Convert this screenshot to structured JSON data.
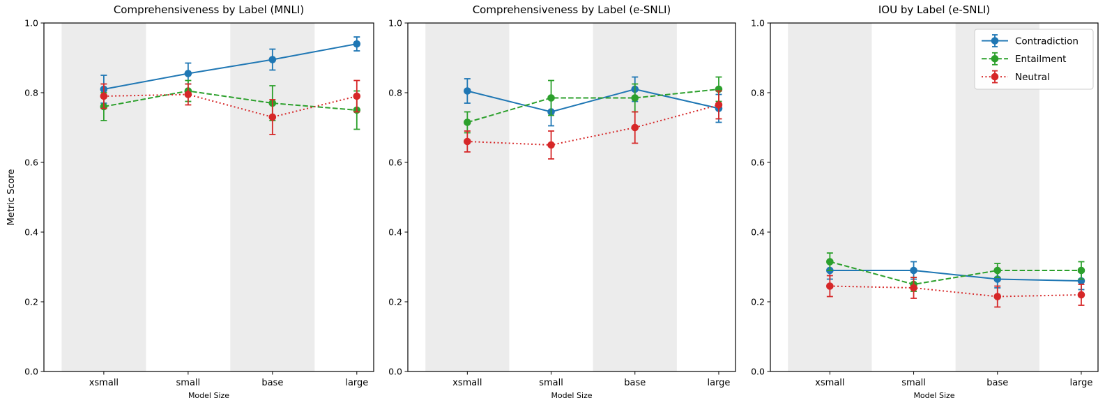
{
  "figure": {
    "background": "#ffffff",
    "axis_color": "#000000",
    "band_color": "#ececec",
    "legend_border_color": "#cccccc",
    "legend_background": "#ffffff"
  },
  "chart_data": [
    {
      "type": "line",
      "title": "Comprehensiveness by Label (MNLI)",
      "xlabel": "Model Size",
      "ylabel": "Metric Score",
      "categories": [
        "xsmall",
        "small",
        "base",
        "large"
      ],
      "ylim": [
        0.0,
        1.0
      ],
      "yticks": [
        "0.0",
        "0.2",
        "0.4",
        "0.6",
        "0.8",
        "1.0"
      ],
      "grid": false,
      "shaded_categories": [
        0,
        2
      ],
      "legend": {
        "visible": false,
        "position": ""
      },
      "series": [
        {
          "name": "Contradiction",
          "color": "#1f77b4",
          "linestyle": "solid",
          "values": [
            0.81,
            0.855,
            0.895,
            0.94
          ],
          "errors": [
            0.04,
            0.03,
            0.03,
            0.02
          ]
        },
        {
          "name": "Entailment",
          "color": "#2ca02c",
          "linestyle": "dashed",
          "values": [
            0.76,
            0.805,
            0.77,
            0.75
          ],
          "errors": [
            0.04,
            0.03,
            0.05,
            0.055
          ]
        },
        {
          "name": "Neutral",
          "color": "#d62728",
          "linestyle": "dotted",
          "values": [
            0.79,
            0.795,
            0.73,
            0.79
          ],
          "errors": [
            0.035,
            0.03,
            0.05,
            0.045
          ]
        }
      ]
    },
    {
      "type": "line",
      "title": "Comprehensiveness by Label (e-SNLI)",
      "xlabel": "Model Size",
      "ylabel": "",
      "categories": [
        "xsmall",
        "small",
        "base",
        "large"
      ],
      "ylim": [
        0.0,
        1.0
      ],
      "yticks": [
        "0.0",
        "0.2",
        "0.4",
        "0.6",
        "0.8",
        "1.0"
      ],
      "grid": false,
      "shaded_categories": [
        0,
        2
      ],
      "legend": {
        "visible": false,
        "position": ""
      },
      "series": [
        {
          "name": "Contradiction",
          "color": "#1f77b4",
          "linestyle": "solid",
          "values": [
            0.805,
            0.745,
            0.81,
            0.755
          ],
          "errors": [
            0.035,
            0.04,
            0.035,
            0.04
          ]
        },
        {
          "name": "Entailment",
          "color": "#2ca02c",
          "linestyle": "dashed",
          "values": [
            0.715,
            0.785,
            0.785,
            0.81
          ],
          "errors": [
            0.03,
            0.05,
            0.04,
            0.035
          ]
        },
        {
          "name": "Neutral",
          "color": "#d62728",
          "linestyle": "dotted",
          "values": [
            0.66,
            0.65,
            0.7,
            0.765
          ],
          "errors": [
            0.03,
            0.04,
            0.045,
            0.04
          ]
        }
      ]
    },
    {
      "type": "line",
      "title": "IOU by Label (e-SNLI)",
      "xlabel": "Model Size",
      "ylabel": "",
      "categories": [
        "xsmall",
        "small",
        "base",
        "large"
      ],
      "ylim": [
        0.0,
        1.0
      ],
      "yticks": [
        "0.0",
        "0.2",
        "0.4",
        "0.6",
        "0.8",
        "1.0"
      ],
      "grid": false,
      "shaded_categories": [
        0,
        2
      ],
      "legend": {
        "visible": true,
        "position": "upper right"
      },
      "series": [
        {
          "name": "Contradiction",
          "color": "#1f77b4",
          "linestyle": "solid",
          "values": [
            0.29,
            0.29,
            0.265,
            0.26
          ],
          "errors": [
            0.025,
            0.025,
            0.025,
            0.025
          ]
        },
        {
          "name": "Entailment",
          "color": "#2ca02c",
          "linestyle": "dashed",
          "values": [
            0.315,
            0.25,
            0.29,
            0.29
          ],
          "errors": [
            0.025,
            0.02,
            0.02,
            0.025
          ]
        },
        {
          "name": "Neutral",
          "color": "#d62728",
          "linestyle": "dotted",
          "values": [
            0.245,
            0.24,
            0.215,
            0.22
          ],
          "errors": [
            0.03,
            0.03,
            0.03,
            0.03
          ]
        }
      ]
    }
  ]
}
